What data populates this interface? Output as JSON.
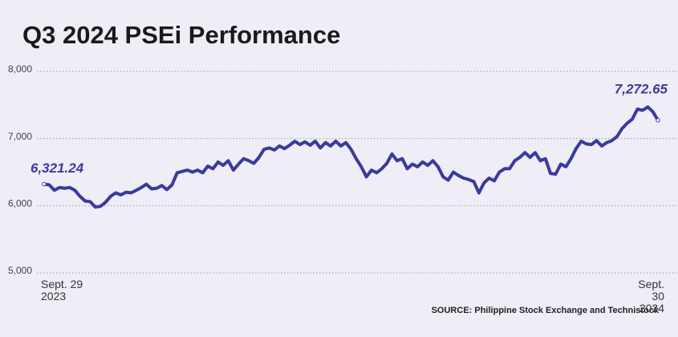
{
  "chart_data": {
    "type": "line",
    "title": "Q3 2024 PSEi Performance",
    "source": "SOURCE: Philippine Stock Exchange and Technistock",
    "categories": [
      "Sept. 29\n2023",
      null,
      null,
      null,
      null,
      null,
      null,
      null,
      null,
      null,
      null,
      null,
      null,
      null,
      null,
      null,
      null,
      null,
      null,
      null,
      null,
      null,
      null,
      null,
      null,
      null,
      null,
      null,
      null,
      null,
      null,
      null,
      null,
      null,
      null,
      null,
      null,
      null,
      null,
      null,
      null,
      null,
      null,
      null,
      null,
      null,
      null,
      null,
      null,
      null,
      null,
      null,
      null,
      null,
      null,
      null,
      null,
      null,
      null,
      null,
      null,
      null,
      null,
      null,
      null,
      null,
      null,
      null,
      null,
      null,
      null,
      null,
      null,
      null,
      null,
      null,
      null,
      null,
      null,
      null,
      null,
      null,
      null,
      null,
      null,
      null,
      null,
      null,
      null,
      null,
      null,
      null,
      null,
      null,
      null,
      null,
      null,
      null,
      null,
      null,
      null,
      null,
      null,
      null,
      null,
      null,
      null,
      null,
      null,
      null,
      null,
      null,
      null,
      null,
      null,
      null,
      null,
      null,
      null,
      null,
      "Sept. 30\n2024"
    ],
    "series": [
      {
        "name": "PSEi",
        "color": "#3a3a9c",
        "values": [
          6321.24,
          6310,
          6230,
          6270,
          6260,
          6270,
          6230,
          6140,
          6070,
          6060,
          5980,
          5990,
          6050,
          6140,
          6190,
          6160,
          6200,
          6190,
          6230,
          6270,
          6320,
          6250,
          6260,
          6300,
          6240,
          6310,
          6490,
          6510,
          6530,
          6500,
          6530,
          6490,
          6590,
          6550,
          6650,
          6600,
          6670,
          6530,
          6620,
          6700,
          6670,
          6630,
          6720,
          6840,
          6860,
          6830,
          6890,
          6850,
          6900,
          6960,
          6910,
          6950,
          6900,
          6960,
          6860,
          6940,
          6890,
          6960,
          6890,
          6940,
          6840,
          6700,
          6580,
          6430,
          6530,
          6490,
          6550,
          6630,
          6770,
          6670,
          6700,
          6550,
          6620,
          6580,
          6650,
          6600,
          6670,
          6580,
          6430,
          6380,
          6500,
          6450,
          6410,
          6390,
          6360,
          6190,
          6340,
          6410,
          6370,
          6500,
          6550,
          6550,
          6670,
          6720,
          6790,
          6720,
          6790,
          6670,
          6700,
          6480,
          6470,
          6620,
          6580,
          6700,
          6850,
          6960,
          6920,
          6910,
          6970,
          6890,
          6940,
          6970,
          7030,
          7150,
          7230,
          7290,
          7440,
          7420,
          7470,
          7400,
          7272.65
        ],
        "value_labels": [
          "6,321.24",
          null,
          null,
          null,
          null,
          null,
          null,
          null,
          null,
          null,
          null,
          null,
          null,
          null,
          null,
          null,
          null,
          null,
          null,
          null,
          null,
          null,
          null,
          null,
          null,
          null,
          null,
          null,
          null,
          null,
          null,
          null,
          null,
          null,
          null,
          null,
          null,
          null,
          null,
          null,
          null,
          null,
          null,
          null,
          null,
          null,
          null,
          null,
          null,
          null,
          null,
          null,
          null,
          null,
          null,
          null,
          null,
          null,
          null,
          null,
          null,
          null,
          null,
          null,
          null,
          null,
          null,
          null,
          null,
          null,
          null,
          null,
          null,
          null,
          null,
          null,
          null,
          null,
          null,
          null,
          null,
          null,
          null,
          null,
          null,
          null,
          null,
          null,
          null,
          null,
          null,
          null,
          null,
          null,
          null,
          null,
          null,
          null,
          null,
          null,
          null,
          null,
          null,
          null,
          null,
          null,
          null,
          null,
          null,
          null,
          null,
          null,
          null,
          null,
          null,
          null,
          null,
          null,
          null,
          null,
          "7,272.65"
        ]
      }
    ],
    "ylim": [
      5000,
      8000
    ],
    "yticks": [
      {
        "value": 5000,
        "label": "5,000"
      },
      {
        "value": 6000,
        "label": "6,000"
      },
      {
        "value": 7000,
        "label": "7,000"
      },
      {
        "value": 8000,
        "label": "8,000"
      }
    ],
    "grid": true
  }
}
